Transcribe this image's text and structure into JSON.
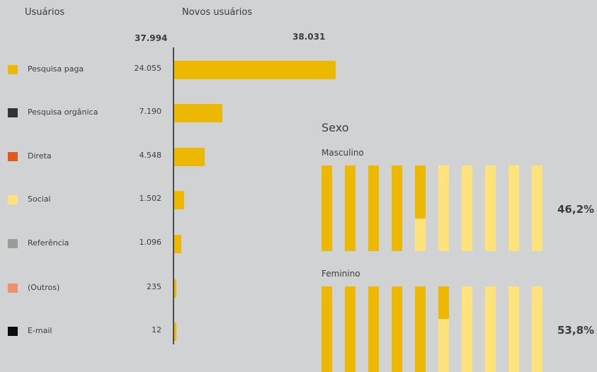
{
  "header": {
    "users_label": "Usuários",
    "new_users_label": "Novos usuários",
    "users_total": "37.994",
    "new_users_total": "38.031"
  },
  "chart_data": [
    {
      "type": "bar",
      "orientation": "horizontal",
      "categories": [
        "Pesquisa paga",
        "Pesquisa orgânica",
        "Direta",
        "Social",
        "Referência",
        "(Outros)",
        "E-mail"
      ],
      "values": [
        24055,
        7190,
        4548,
        1502,
        1096,
        235,
        12
      ],
      "value_labels": [
        "24.055",
        "7.190",
        "4.548",
        "1.502",
        "1.096",
        "235",
        "12"
      ],
      "colors": [
        "#edb800",
        "#2f3436",
        "#e05a1e",
        "#ffe27a",
        "#9b9c98",
        "#f0906a",
        "#0c0c0c"
      ],
      "bar_color": "#edb800",
      "xlim": [
        0,
        24055
      ]
    },
    {
      "type": "bar",
      "title": "Sexo",
      "groups": [
        {
          "name": "Masculino",
          "value": 46.2,
          "label": "46,2%"
        },
        {
          "name": "Feminino",
          "value": 53.8,
          "label": "53,8%"
        }
      ],
      "filled_color": "#edb800",
      "empty_color": "#ffe27a"
    }
  ]
}
